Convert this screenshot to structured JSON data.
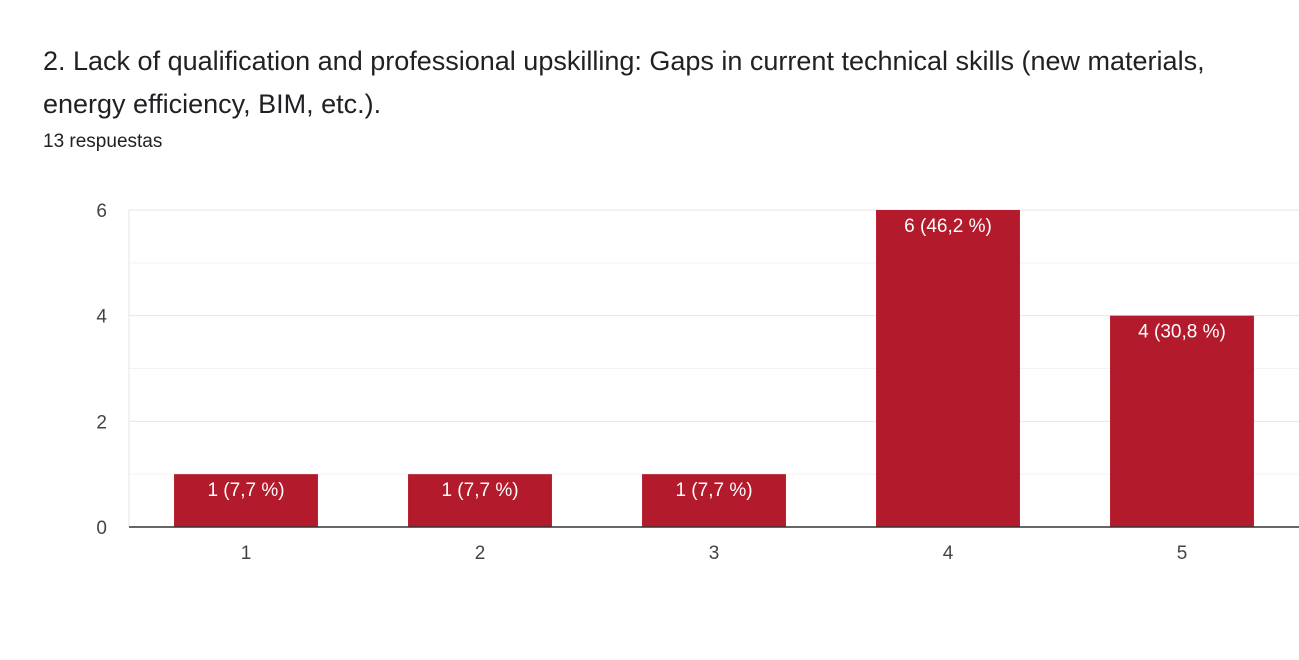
{
  "question": {
    "title": "2. Lack of qualification and professional upskilling: Gaps in current technical skills (new materials, energy efficiency, BIM, etc.).",
    "responses": "13 respuestas"
  },
  "chart_data": {
    "type": "bar",
    "categories": [
      "1",
      "2",
      "3",
      "4",
      "5"
    ],
    "values": [
      1,
      1,
      1,
      6,
      4
    ],
    "data_labels": [
      "1 (7,7 %)",
      "1 (7,7 %)",
      "1 (7,7 %)",
      "6 (46,2 %)",
      "4 (30,8 %)"
    ],
    "ylim": [
      0,
      6
    ],
    "yticks": [
      0,
      2,
      4,
      6
    ],
    "grid": true,
    "bar_color": "#b31a2b",
    "xlabel": "",
    "ylabel": ""
  }
}
